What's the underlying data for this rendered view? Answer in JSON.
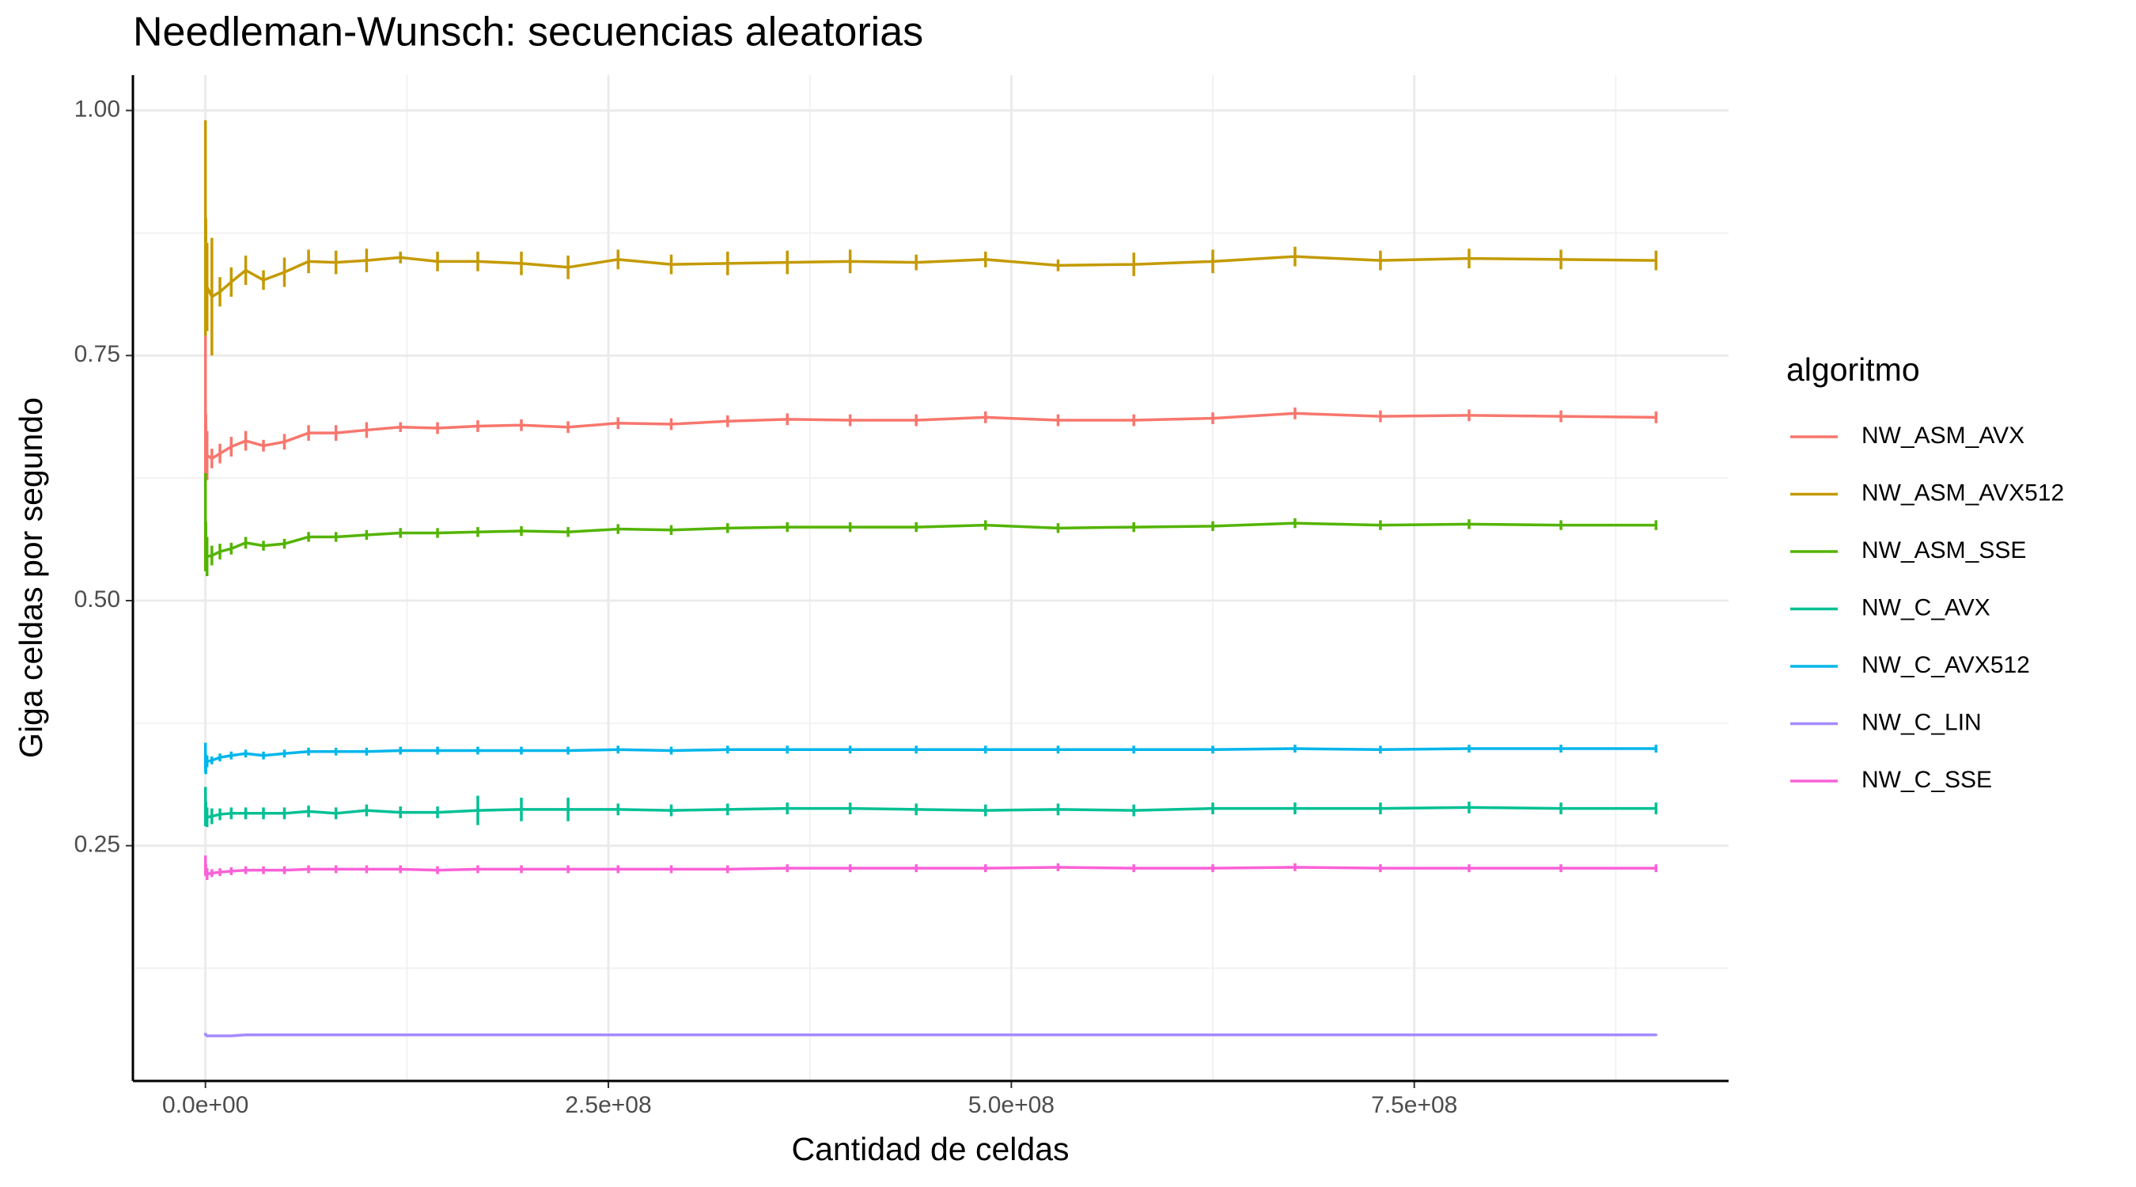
{
  "chart_data": {
    "type": "line",
    "title": "Needleman-Wunsch: secuencias aleatorias",
    "xlabel": "Cantidad de celdas",
    "ylabel": "Giga celdas por segundo",
    "legend_title": "algoritmo",
    "legend": "right",
    "grid": true,
    "xlim": [
      -45000000,
      945000000
    ],
    "ylim": [
      0.01,
      1.036
    ],
    "xticks": [
      {
        "value": 0,
        "label": "0.0e+00"
      },
      {
        "value": 250000000,
        "label": "2.5e+08"
      },
      {
        "value": 500000000,
        "label": "5.0e+08"
      },
      {
        "value": 750000000,
        "label": "7.5e+08"
      }
    ],
    "yticks": [
      {
        "value": 0.25,
        "label": "0.25"
      },
      {
        "value": 0.5,
        "label": "0.50"
      },
      {
        "value": 0.75,
        "label": "0.75"
      },
      {
        "value": 1,
        "label": "1.00"
      }
    ],
    "x": [
      10000,
      250000,
      1000000,
      4000000,
      9000000,
      16000000,
      25000000,
      36000000,
      49000000,
      64000000,
      81000000,
      100000000,
      121000000,
      144000000,
      169000000,
      196000000,
      225000000,
      256000000,
      289000000,
      324000000,
      361000000,
      400000000,
      441000000,
      484000000,
      529000000,
      576000000,
      625000000,
      676000000,
      729000000,
      784000000,
      841000000,
      900000000
    ],
    "series": [
      {
        "name": "NW_ASM_AVX",
        "color": "#F8766D",
        "values": [
          0.7,
          0.66,
          0.648,
          0.645,
          0.65,
          0.657,
          0.663,
          0.658,
          0.662,
          0.671,
          0.671,
          0.674,
          0.677,
          0.676,
          0.678,
          0.679,
          0.677,
          0.681,
          0.68,
          0.683,
          0.685,
          0.684,
          0.684,
          0.687,
          0.684,
          0.684,
          0.686,
          0.691,
          0.688,
          0.689,
          0.688,
          0.687
        ],
        "errors": [
          0.07,
          0.03,
          0.025,
          0.01,
          0.01,
          0.01,
          0.01,
          0.006,
          0.008,
          0.008,
          0.008,
          0.008,
          0.005,
          0.006,
          0.006,
          0.006,
          0.006,
          0.006,
          0.006,
          0.006,
          0.006,
          0.006,
          0.006,
          0.006,
          0.006,
          0.006,
          0.006,
          0.006,
          0.006,
          0.006,
          0.006,
          0.006
        ]
      },
      {
        "name": "NW_ASM_AVX512",
        "color": "#C49A00",
        "values": [
          0.88,
          0.84,
          0.82,
          0.81,
          0.815,
          0.825,
          0.837,
          0.827,
          0.835,
          0.846,
          0.845,
          0.847,
          0.85,
          0.846,
          0.846,
          0.844,
          0.84,
          0.848,
          0.843,
          0.844,
          0.845,
          0.846,
          0.845,
          0.848,
          0.842,
          0.843,
          0.846,
          0.851,
          0.847,
          0.849,
          0.848,
          0.847
        ],
        "errors": [
          0.11,
          0.05,
          0.045,
          0.06,
          0.015,
          0.015,
          0.015,
          0.01,
          0.015,
          0.012,
          0.012,
          0.012,
          0.006,
          0.01,
          0.01,
          0.012,
          0.012,
          0.01,
          0.01,
          0.012,
          0.012,
          0.012,
          0.008,
          0.008,
          0.006,
          0.012,
          0.012,
          0.01,
          0.01,
          0.01,
          0.01,
          0.01
        ]
      },
      {
        "name": "NW_ASM_SSE",
        "color": "#53B400",
        "values": [
          0.58,
          0.555,
          0.545,
          0.546,
          0.55,
          0.553,
          0.559,
          0.556,
          0.558,
          0.565,
          0.565,
          0.567,
          0.569,
          0.569,
          0.57,
          0.571,
          0.57,
          0.573,
          0.572,
          0.574,
          0.575,
          0.575,
          0.575,
          0.577,
          0.574,
          0.575,
          0.576,
          0.579,
          0.577,
          0.578,
          0.577,
          0.577
        ],
        "errors": [
          0.05,
          0.025,
          0.02,
          0.01,
          0.008,
          0.006,
          0.006,
          0.005,
          0.005,
          0.005,
          0.005,
          0.005,
          0.005,
          0.005,
          0.005,
          0.005,
          0.005,
          0.005,
          0.005,
          0.005,
          0.005,
          0.005,
          0.005,
          0.005,
          0.005,
          0.005,
          0.005,
          0.005,
          0.005,
          0.005,
          0.005,
          0.005
        ]
      },
      {
        "name": "NW_C_AVX",
        "color": "#00C094",
        "values": [
          0.29,
          0.283,
          0.279,
          0.28,
          0.282,
          0.283,
          0.283,
          0.283,
          0.283,
          0.285,
          0.283,
          0.286,
          0.284,
          0.284,
          0.286,
          0.287,
          0.287,
          0.287,
          0.286,
          0.287,
          0.288,
          0.288,
          0.287,
          0.286,
          0.287,
          0.286,
          0.288,
          0.288,
          0.288,
          0.289,
          0.288,
          0.288
        ],
        "errors": [
          0.02,
          0.012,
          0.01,
          0.008,
          0.006,
          0.006,
          0.006,
          0.006,
          0.006,
          0.006,
          0.006,
          0.006,
          0.006,
          0.006,
          0.015,
          0.012,
          0.012,
          0.006,
          0.006,
          0.006,
          0.006,
          0.006,
          0.006,
          0.006,
          0.006,
          0.006,
          0.006,
          0.006,
          0.006,
          0.006,
          0.006,
          0.006
        ]
      },
      {
        "name": "NW_C_AVX512",
        "color": "#00B6EB",
        "values": [
          0.34,
          0.333,
          0.336,
          0.337,
          0.34,
          0.342,
          0.344,
          0.342,
          0.344,
          0.346,
          0.346,
          0.346,
          0.347,
          0.347,
          0.347,
          0.347,
          0.347,
          0.348,
          0.347,
          0.348,
          0.348,
          0.348,
          0.348,
          0.348,
          0.348,
          0.348,
          0.348,
          0.349,
          0.348,
          0.349,
          0.349,
          0.349
        ],
        "errors": [
          0.015,
          0.01,
          0.006,
          0.004,
          0.004,
          0.004,
          0.004,
          0.004,
          0.004,
          0.004,
          0.004,
          0.004,
          0.004,
          0.004,
          0.004,
          0.004,
          0.004,
          0.004,
          0.004,
          0.004,
          0.004,
          0.004,
          0.004,
          0.004,
          0.004,
          0.004,
          0.004,
          0.004,
          0.004,
          0.004,
          0.004,
          0.004
        ]
      },
      {
        "name": "NW_C_LIN",
        "color": "#A58AFF",
        "values": [
          0.058,
          0.057,
          0.056,
          0.056,
          0.056,
          0.056,
          0.057,
          0.057,
          0.057,
          0.057,
          0.057,
          0.057,
          0.057,
          0.057,
          0.057,
          0.057,
          0.057,
          0.057,
          0.057,
          0.057,
          0.057,
          0.057,
          0.057,
          0.057,
          0.057,
          0.057,
          0.057,
          0.057,
          0.057,
          0.057,
          0.057,
          0.057
        ],
        "errors": [
          0.001,
          0.001,
          0.001,
          0.001,
          0.001,
          0.001,
          0.001,
          0.001,
          0.001,
          0.001,
          0.001,
          0.001,
          0.001,
          0.001,
          0.001,
          0.001,
          0.001,
          0.001,
          0.001,
          0.001,
          0.001,
          0.001,
          0.001,
          0.001,
          0.001,
          0.001,
          0.001,
          0.001,
          0.001,
          0.001,
          0.001,
          0.001
        ]
      },
      {
        "name": "NW_C_SSE",
        "color": "#FB61D7",
        "values": [
          0.23,
          0.225,
          0.221,
          0.222,
          0.223,
          0.224,
          0.225,
          0.225,
          0.225,
          0.226,
          0.226,
          0.226,
          0.226,
          0.225,
          0.226,
          0.226,
          0.226,
          0.226,
          0.226,
          0.226,
          0.227,
          0.227,
          0.227,
          0.227,
          0.228,
          0.227,
          0.227,
          0.228,
          0.227,
          0.227,
          0.227,
          0.227
        ],
        "errors": [
          0.01,
          0.006,
          0.006,
          0.004,
          0.004,
          0.004,
          0.004,
          0.004,
          0.004,
          0.004,
          0.004,
          0.004,
          0.004,
          0.004,
          0.004,
          0.004,
          0.004,
          0.004,
          0.004,
          0.004,
          0.004,
          0.004,
          0.004,
          0.004,
          0.004,
          0.004,
          0.004,
          0.004,
          0.004,
          0.004,
          0.004,
          0.004
        ]
      }
    ]
  }
}
